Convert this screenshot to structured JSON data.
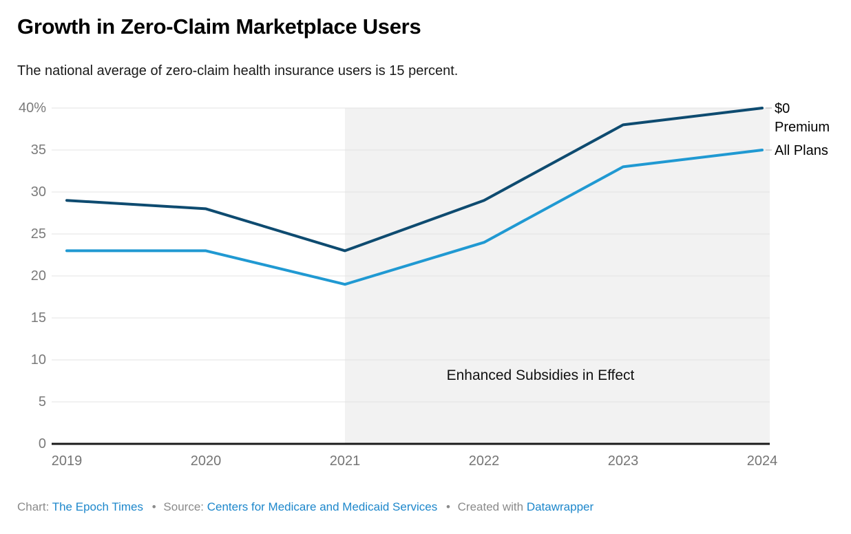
{
  "header": {
    "title": "Growth in Zero-Claim Marketplace Users",
    "subtitle": "The national average of zero-claim health insurance users is 15 percent."
  },
  "chart_data": {
    "type": "line",
    "x": [
      "2019",
      "2020",
      "2021",
      "2022",
      "2023",
      "2024"
    ],
    "series": [
      {
        "name": "$0 Premium",
        "values": [
          29,
          28,
          23,
          29,
          38,
          40
        ],
        "color": "#0e4b70"
      },
      {
        "name": "All Plans",
        "values": [
          23,
          23,
          19,
          24,
          33,
          35
        ],
        "color": "#2099d2"
      }
    ],
    "title": "Growth in Zero-Claim Marketplace Users",
    "xlabel": "",
    "ylabel": "",
    "ylim": [
      0,
      40
    ],
    "yticks": [
      0,
      5,
      10,
      15,
      20,
      25,
      30,
      35,
      40
    ],
    "ytick_top_label": "40%",
    "grid": true,
    "legend_position": "right of line ends",
    "shaded_region": {
      "from_x": "2021",
      "to_x": "end of plot",
      "label": "Enhanced Subsidies in Effect",
      "color": "#f2f2f2"
    },
    "colors": {
      "gridline": "#e3e3e3",
      "axis_line": "#1a1a1a",
      "leader_line": "#c8c8c8",
      "tick_label": "#757575"
    }
  },
  "footer": {
    "chart_label": "Chart:",
    "chart_value": "The Epoch Times",
    "separator": "•",
    "source_label": "Source:",
    "source_value": "Centers for Medicare and Medicaid Services",
    "created_label": "Created with",
    "created_value": "Datawrapper"
  }
}
